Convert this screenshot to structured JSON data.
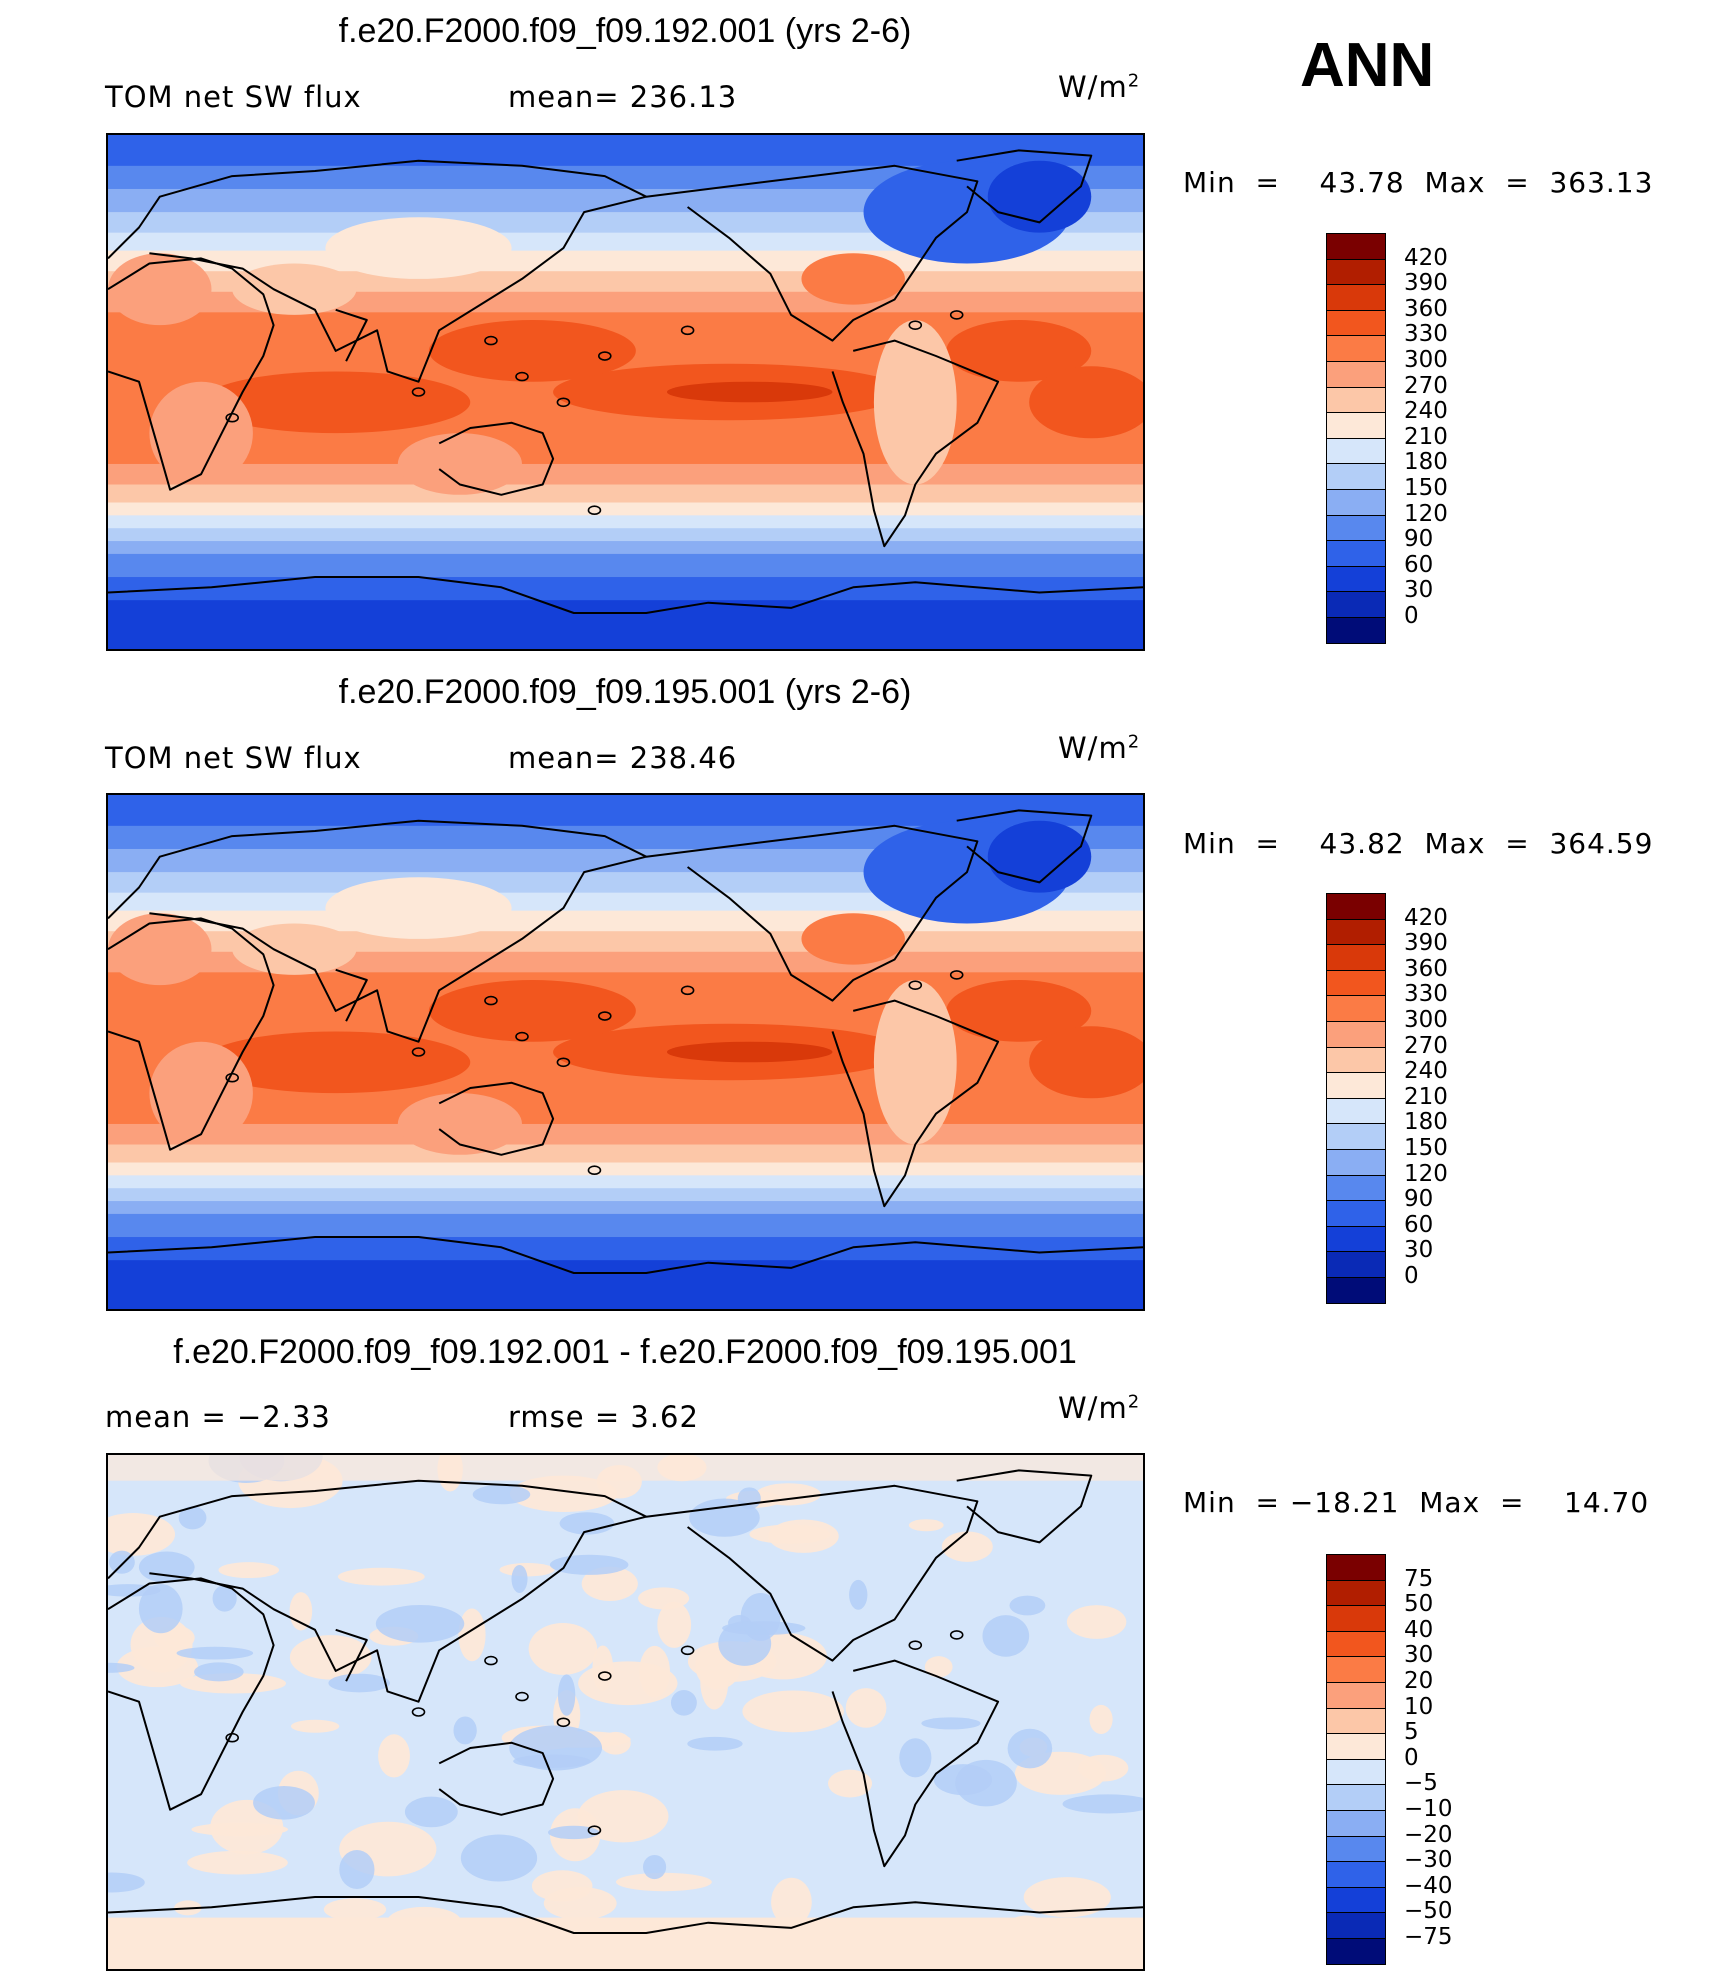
{
  "season": "ANN",
  "units_label": "W/m",
  "units_exp": "2",
  "panels": [
    {
      "title": "f.e20.F2000.f09_f09.192.001 (yrs 2-6)",
      "left_label": "TOM net SW flux",
      "center_label": "mean=  236.13",
      "minmax": "Min  =    43.78  Max  =  363.13",
      "map_type": "absolute",
      "colorbar_labels": [
        "420",
        "390",
        "360",
        "330",
        "300",
        "270",
        "240",
        "210",
        "180",
        "150",
        "120",
        "90",
        "60",
        "30",
        "0"
      ]
    },
    {
      "title": "f.e20.F2000.f09_f09.195.001 (yrs 2-6)",
      "left_label": "TOM net SW flux",
      "center_label": "mean=  238.46",
      "minmax": "Min  =    43.82  Max  =  364.59",
      "map_type": "absolute",
      "colorbar_labels": [
        "420",
        "390",
        "360",
        "330",
        "300",
        "270",
        "240",
        "210",
        "180",
        "150",
        "120",
        "90",
        "60",
        "30",
        "0"
      ]
    },
    {
      "title": "f.e20.F2000.f09_f09.192.001 - f.e20.F2000.f09_f09.195.001",
      "left_label": "mean  =    −2.33",
      "center_label": "rmse  =     3.62",
      "minmax": "Min  = −18.21  Max  =    14.70",
      "map_type": "difference",
      "colorbar_labels": [
        "75",
        "50",
        "40",
        "30",
        "20",
        "10",
        "5",
        "0",
        "−5",
        "−10",
        "−20",
        "−30",
        "−40",
        "−50",
        "−75"
      ]
    }
  ],
  "colorbar_colors": [
    "#7a0000",
    "#b11e00",
    "#d9390a",
    "#f2561e",
    "#fb7b45",
    "#fba07c",
    "#fcc7a8",
    "#fde8d8",
    "#d6e6fa",
    "#b3cef7",
    "#8aaef3",
    "#5888ee",
    "#2f62e9",
    "#1440d8",
    "#0a2ab6",
    "#000c78"
  ]
}
